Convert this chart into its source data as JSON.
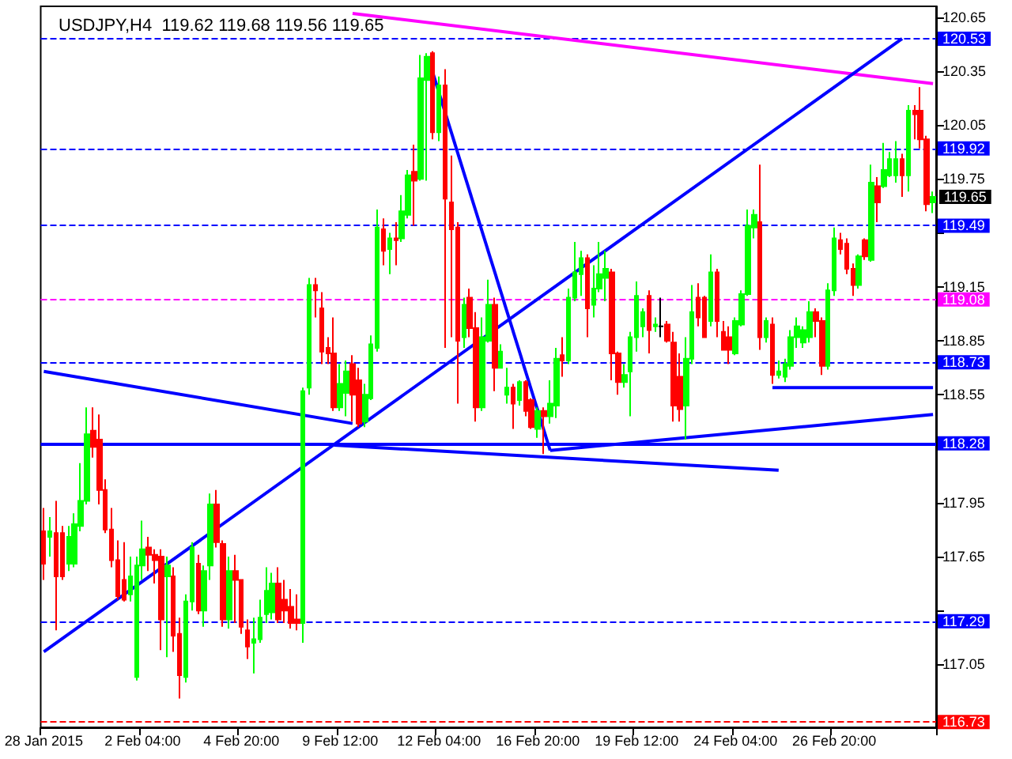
{
  "chart_data": {
    "type": "candlestick",
    "title": "USDJPY,H4  119.62 119.68 119.56 119.65",
    "categories": [
      "28 Jan 2015",
      null,
      null,
      null,
      null,
      null,
      null,
      null,
      null,
      null,
      null,
      null,
      null,
      null,
      null,
      null,
      "2 Feb 04:00",
      null,
      null,
      null,
      null,
      null,
      null,
      null,
      null,
      null,
      null,
      null,
      null,
      null,
      null,
      null,
      "4 Feb 20:00",
      null,
      null,
      null,
      null,
      null,
      null,
      null,
      null,
      null,
      null,
      null,
      null,
      null,
      null,
      null,
      "9 Feb 12:00",
      null,
      null,
      null,
      null,
      null,
      null,
      null,
      null,
      null,
      null,
      null,
      null,
      null,
      null,
      null,
      "12 Feb 04:00",
      null,
      null,
      null,
      null,
      null,
      null,
      null,
      null,
      null,
      null,
      null,
      null,
      null,
      null,
      null,
      "16 Feb 20:00",
      null,
      null,
      null,
      null,
      null,
      null,
      null,
      null,
      null,
      null,
      null,
      null,
      null,
      null,
      null,
      "19 Feb 12:00",
      null,
      null,
      null,
      null,
      null,
      null,
      null,
      null,
      null,
      null,
      null,
      null,
      null,
      null,
      null,
      "24 Feb 04:00",
      null,
      null,
      null,
      null,
      null,
      null,
      null,
      null,
      null,
      null,
      null,
      null,
      null,
      null,
      null,
      "26 Feb 20:00",
      null,
      null,
      null,
      null,
      null,
      null,
      null,
      null,
      null,
      null,
      null,
      null,
      null,
      null,
      null,
      null
    ],
    "colors": [
      "#ff0000",
      "#00ff00",
      "#ff0000",
      "#ff0000",
      "#00ff00",
      "#00ff00",
      "#00ff00",
      "#00ff00",
      "#ff0000",
      "#ff0000",
      "#ff0000",
      "#ff0000",
      "#ff0000",
      "#ff0000",
      "#00ff00",
      "#00ff00",
      "#00ff00",
      "#ff0000",
      "#ff0000",
      "#ff0000",
      "#00ff00",
      "#ff0000",
      "#ff0000",
      "#00ff00",
      "#00ff00",
      "#ff0000",
      "#00ff00",
      "#00ff00",
      "#ff0000",
      "#ff0000",
      "#00ff00",
      "#ff0000",
      "#ff0000",
      "#ff0000",
      "#00ff00",
      "#00ff00",
      "#00ff00",
      "#00ff00",
      "#ff0000",
      "#ff0000",
      "#ff0000",
      "#ff0000",
      "#00ff00",
      "#00ff00",
      "#ff0000",
      "#ff0000",
      "#ff0000",
      "#ff0000",
      "#00ff00",
      "#00ff00",
      "#ff0000",
      "#ff0000",
      "#00ff00",
      "#00ff00",
      "#00ff00",
      "#ff0000",
      "#00ff00",
      "#ff0000",
      "#00ff00",
      "#00ff00",
      "#ff0000",
      "#00ff00",
      "#00ff00",
      "#ff0000",
      "#00ff00",
      "#ff0000",
      "#ff0000",
      "#ff0000",
      "#00ff00",
      "#ff0000",
      "#ff0000",
      "#00ff00",
      "#00ff00",
      "#ff0000",
      "#00ff00",
      "#00ff00",
      "#ff0000",
      "#00ff00",
      "#ff0000",
      "#ff0000",
      "#00ff00",
      "#ff0000",
      "#00ff00",
      "#00ff00",
      "#ff0000",
      "#00ff00",
      "#00ff00",
      "#00ff00",
      "#ff0000",
      "#00ff00",
      "#00ff00",
      "#00ff00",
      "#ff0000",
      "#ff0000",
      "#00ff00",
      "#00ff00",
      "#00ff00",
      "#00ff00",
      "#ff0000",
      "#00ff00",
      "#000000",
      "#ff0000",
      "#ff0000",
      "#ff0000",
      "#00ff00",
      "#00ff00",
      "#ff0000",
      "#ff0000",
      "#00ff00",
      "#ff0000",
      "#ff0000",
      "#ff0000",
      "#00ff00",
      "#00ff00",
      "#00ff00",
      "#00ff00",
      "#ff0000",
      "#00ff00",
      "#ff0000",
      "#00ff00",
      "#00ff00",
      "#00ff00",
      "#00ff00",
      "#00ff00",
      "#00ff00",
      "#ff0000",
      "#ff0000",
      "#00ff00",
      "#00ff00",
      "#ff0000",
      "#ff0000",
      "#ff0000",
      "#00ff00",
      "#ff0000",
      "#00ff00",
      "#ff0000",
      "#00ff00",
      "#00ff00",
      "#00ff00",
      "#ff0000",
      "#00ff00",
      "#ff0000",
      "#ff0000",
      "#ff0000",
      "#00ff00"
    ],
    "ohlc": [
      [
        117.79,
        117.92,
        117.52,
        117.61
      ],
      [
        117.76,
        117.87,
        117.65,
        117.79
      ],
      [
        117.78,
        117.96,
        117.24,
        117.54
      ],
      [
        117.78,
        117.82,
        117.52,
        117.54
      ],
      [
        117.61,
        117.82,
        117.57,
        117.76
      ],
      [
        117.61,
        117.89,
        117.59,
        117.83
      ],
      [
        117.82,
        118.17,
        117.79,
        117.96
      ],
      [
        117.96,
        118.48,
        117.94,
        118.33
      ],
      [
        118.35,
        118.48,
        118.2,
        118.26
      ],
      [
        118.3,
        118.44,
        117.94,
        118.02
      ],
      [
        118.02,
        118.08,
        117.78,
        117.8
      ],
      [
        117.8,
        117.92,
        117.59,
        117.63
      ],
      [
        117.63,
        117.74,
        117.41,
        117.43
      ],
      [
        117.52,
        117.73,
        117.4,
        117.41
      ],
      [
        117.44,
        117.65,
        117.4,
        117.54
      ],
      [
        116.98,
        117.65,
        116.96,
        117.6
      ],
      [
        117.6,
        117.85,
        117.52,
        117.69
      ],
      [
        117.7,
        117.76,
        117.57,
        117.66
      ],
      [
        117.66,
        117.69,
        117.5,
        117.63
      ],
      [
        117.65,
        117.69,
        117.13,
        117.3
      ],
      [
        117.54,
        117.65,
        117.09,
        117.6
      ],
      [
        117.54,
        117.59,
        117.12,
        117.21
      ],
      [
        117.22,
        117.31,
        116.86,
        116.99
      ],
      [
        116.98,
        117.44,
        116.95,
        117.4
      ],
      [
        117.4,
        117.73,
        117.35,
        117.7
      ],
      [
        117.61,
        117.66,
        117.33,
        117.35
      ],
      [
        117.35,
        117.6,
        117.26,
        117.57
      ],
      [
        117.6,
        118.0,
        117.52,
        117.94
      ],
      [
        117.94,
        118.02,
        117.7,
        117.73
      ],
      [
        117.72,
        117.74,
        117.26,
        117.3
      ],
      [
        117.3,
        117.65,
        117.25,
        117.57
      ],
      [
        117.57,
        117.66,
        117.28,
        117.52
      ],
      [
        117.52,
        117.52,
        117.22,
        117.26
      ],
      [
        117.24,
        117.3,
        117.08,
        117.15
      ],
      [
        117.17,
        117.31,
        117.0,
        117.19
      ],
      [
        117.19,
        117.41,
        117.17,
        117.31
      ],
      [
        117.33,
        117.59,
        117.28,
        117.46
      ],
      [
        117.34,
        117.56,
        117.3,
        117.5
      ],
      [
        117.5,
        117.59,
        117.28,
        117.3
      ],
      [
        117.41,
        117.52,
        117.28,
        117.35
      ],
      [
        117.37,
        117.47,
        117.25,
        117.28
      ],
      [
        117.3,
        117.44,
        117.24,
        117.28
      ],
      [
        117.28,
        118.59,
        117.17,
        118.57
      ],
      [
        118.59,
        119.2,
        118.55,
        119.16
      ],
      [
        119.16,
        119.2,
        118.98,
        119.13
      ],
      [
        119.03,
        119.12,
        118.72,
        118.79
      ],
      [
        118.81,
        118.87,
        118.72,
        118.78
      ],
      [
        118.78,
        118.98,
        118.46,
        118.48
      ],
      [
        118.48,
        118.72,
        118.46,
        118.61
      ],
      [
        118.56,
        118.74,
        118.43,
        118.68
      ],
      [
        118.72,
        118.77,
        118.4,
        118.55
      ],
      [
        118.63,
        118.7,
        118.37,
        118.39
      ],
      [
        118.4,
        118.61,
        118.37,
        118.55
      ],
      [
        118.53,
        118.88,
        118.52,
        118.83
      ],
      [
        118.81,
        119.58,
        118.79,
        119.48
      ],
      [
        119.47,
        119.53,
        119.27,
        119.35
      ],
      [
        119.36,
        119.45,
        119.22,
        119.42
      ],
      [
        119.42,
        119.51,
        119.27,
        119.41
      ],
      [
        119.42,
        119.66,
        119.4,
        119.57
      ],
      [
        119.55,
        119.8,
        119.53,
        119.77
      ],
      [
        119.79,
        119.94,
        119.49,
        119.74
      ],
      [
        119.75,
        120.44,
        119.74,
        120.31
      ],
      [
        120.3,
        120.45,
        119.74,
        120.43
      ],
      [
        120.45,
        120.46,
        119.97,
        120.01
      ],
      [
        120.01,
        120.32,
        119.96,
        120.27
      ],
      [
        120.27,
        120.36,
        118.81,
        119.64
      ],
      [
        119.62,
        119.88,
        118.87,
        119.47
      ],
      [
        119.48,
        119.51,
        118.5,
        118.85
      ],
      [
        118.87,
        119.09,
        118.81,
        119.05
      ],
      [
        119.09,
        119.14,
        118.87,
        118.92
      ],
      [
        118.92,
        119.01,
        118.4,
        118.48
      ],
      [
        118.48,
        118.98,
        118.46,
        118.87
      ],
      [
        118.85,
        119.19,
        118.84,
        119.05
      ],
      [
        119.05,
        119.09,
        118.57,
        118.7
      ],
      [
        118.7,
        118.83,
        118.7,
        118.79
      ],
      [
        118.55,
        118.7,
        118.5,
        118.59
      ],
      [
        118.59,
        118.61,
        118.36,
        118.5
      ],
      [
        118.52,
        118.63,
        118.49,
        118.62
      ],
      [
        118.62,
        118.63,
        118.43,
        118.46
      ],
      [
        118.52,
        118.53,
        118.36,
        118.37
      ],
      [
        118.36,
        118.48,
        118.31,
        118.46
      ],
      [
        118.46,
        118.48,
        118.22,
        118.43
      ],
      [
        118.43,
        118.63,
        118.39,
        118.5
      ],
      [
        118.49,
        118.81,
        118.42,
        118.75
      ],
      [
        118.77,
        118.87,
        118.65,
        118.74
      ],
      [
        118.74,
        119.14,
        118.72,
        119.09
      ],
      [
        119.09,
        119.4,
        119.07,
        119.23
      ],
      [
        119.22,
        119.35,
        119.1,
        119.31
      ],
      [
        119.31,
        119.33,
        118.87,
        119.03
      ],
      [
        119.05,
        119.27,
        118.98,
        119.14
      ],
      [
        119.14,
        119.4,
        119.12,
        119.22
      ],
      [
        119.2,
        119.35,
        119.07,
        119.25
      ],
      [
        119.23,
        119.25,
        118.63,
        118.78
      ],
      [
        118.78,
        118.79,
        118.55,
        118.62
      ],
      [
        118.62,
        118.72,
        118.59,
        118.66
      ],
      [
        118.68,
        118.9,
        118.43,
        118.87
      ],
      [
        118.87,
        119.18,
        118.79,
        119.1
      ],
      [
        118.93,
        119.03,
        118.87,
        119.01
      ],
      [
        119.1,
        119.13,
        118.78,
        118.91
      ],
      [
        118.93,
        118.98,
        118.9,
        118.94
      ],
      [
        118.93,
        119.09,
        118.87,
        118.93
      ],
      [
        118.94,
        118.96,
        118.84,
        118.85
      ],
      [
        118.84,
        118.9,
        118.4,
        118.49
      ],
      [
        118.65,
        118.78,
        118.4,
        118.47
      ],
      [
        118.49,
        118.87,
        118.3,
        118.75
      ],
      [
        118.75,
        119.16,
        118.72,
        119.01
      ],
      [
        119.09,
        119.17,
        118.93,
        118.98
      ],
      [
        119.09,
        119.1,
        118.87,
        118.87
      ],
      [
        118.96,
        119.33,
        118.93,
        119.23
      ],
      [
        119.23,
        119.25,
        118.87,
        118.96
      ],
      [
        118.9,
        118.96,
        118.8,
        118.8
      ],
      [
        118.87,
        118.93,
        118.72,
        118.8
      ],
      [
        118.78,
        118.98,
        118.77,
        118.96
      ],
      [
        118.94,
        119.13,
        118.93,
        119.11
      ],
      [
        119.11,
        119.58,
        119.1,
        119.49
      ],
      [
        119.48,
        119.58,
        119.42,
        119.55
      ],
      [
        119.51,
        119.83,
        118.8,
        118.87
      ],
      [
        118.87,
        118.98,
        118.84,
        118.96
      ],
      [
        118.94,
        118.98,
        118.61,
        118.66
      ],
      [
        118.66,
        118.74,
        118.64,
        118.68
      ],
      [
        118.65,
        118.75,
        118.62,
        118.72
      ],
      [
        118.71,
        118.91,
        118.69,
        118.87
      ],
      [
        118.87,
        118.98,
        118.81,
        118.93
      ],
      [
        118.84,
        118.93,
        118.81,
        118.91
      ],
      [
        118.87,
        119.07,
        118.84,
        119.01
      ],
      [
        119.01,
        119.03,
        118.87,
        118.96
      ],
      [
        118.96,
        118.98,
        118.66,
        118.71
      ],
      [
        118.71,
        119.17,
        118.69,
        119.13
      ],
      [
        119.13,
        119.48,
        119.1,
        119.42
      ],
      [
        119.41,
        119.45,
        119.33,
        119.36
      ],
      [
        119.39,
        119.42,
        119.22,
        119.25
      ],
      [
        119.25,
        119.28,
        119.1,
        119.16
      ],
      [
        119.16,
        119.33,
        119.14,
        119.32
      ],
      [
        119.41,
        119.42,
        119.3,
        119.32
      ],
      [
        119.3,
        119.83,
        119.29,
        119.73
      ],
      [
        119.71,
        119.76,
        119.51,
        119.62
      ],
      [
        119.71,
        119.95,
        119.7,
        119.8
      ],
      [
        119.77,
        119.9,
        119.76,
        119.86
      ],
      [
        119.77,
        119.96,
        119.73,
        119.86
      ],
      [
        119.86,
        119.89,
        119.65,
        119.77
      ],
      [
        119.77,
        120.16,
        119.68,
        120.13
      ],
      [
        120.13,
        120.16,
        119.97,
        120.11
      ],
      [
        120.13,
        120.26,
        119.92,
        119.97
      ],
      [
        119.97,
        119.99,
        119.57,
        119.61
      ],
      [
        119.62,
        119.68,
        119.56,
        119.65
      ]
    ],
    "series": [
      {
        "type": "line",
        "color": "#ff00ff",
        "line_style": "solid",
        "values": [
          null,
          null,
          null,
          null,
          null,
          null,
          null,
          null,
          null,
          null,
          null,
          null,
          null,
          null,
          null,
          null,
          null,
          null,
          null,
          null,
          null,
          null,
          null,
          null,
          null,
          null,
          null,
          null,
          null,
          null,
          null,
          null,
          null,
          null,
          null,
          null,
          null,
          null,
          null,
          null,
          null,
          null,
          null,
          null,
          null,
          null,
          null,
          null,
          null,
          null,
          120.67,
          null,
          null,
          null,
          null,
          null,
          null,
          null,
          null,
          null,
          null,
          null,
          null,
          null,
          null,
          null,
          null,
          null,
          null,
          null,
          null,
          null,
          null,
          null,
          null,
          null,
          null,
          null,
          null,
          null,
          null,
          null,
          null,
          null,
          null,
          null,
          null,
          null,
          null,
          null,
          null,
          null,
          null,
          null,
          null,
          null,
          null,
          null,
          null,
          null,
          null,
          null,
          null,
          null,
          null,
          null,
          null,
          null,
          null,
          null,
          null,
          null,
          null,
          null,
          null,
          null,
          null,
          null,
          null,
          null,
          null,
          null,
          null,
          null,
          null,
          null,
          null,
          null,
          null,
          null,
          null,
          null,
          null,
          null,
          null,
          null,
          null,
          null,
          null,
          null,
          null,
          null,
          null,
          null,
          120.28
        ]
      },
      {
        "type": "line",
        "color": "#0000ff",
        "line_style": "solid",
        "values": [
          117.12,
          null,
          null,
          null,
          null,
          null,
          null,
          null,
          null,
          null,
          null,
          null,
          null,
          null,
          null,
          null,
          null,
          null,
          null,
          null,
          null,
          null,
          null,
          null,
          null,
          null,
          null,
          null,
          null,
          null,
          null,
          null,
          null,
          null,
          null,
          null,
          null,
          null,
          null,
          null,
          null,
          null,
          null,
          null,
          null,
          null,
          null,
          null,
          null,
          null,
          null,
          null,
          null,
          null,
          null,
          null,
          null,
          null,
          null,
          null,
          null,
          null,
          null,
          null,
          null,
          null,
          null,
          null,
          null,
          null,
          null,
          null,
          null,
          null,
          null,
          null,
          null,
          null,
          null,
          null,
          null,
          null,
          null,
          null,
          null,
          null,
          null,
          null,
          null,
          null,
          null,
          null,
          null,
          null,
          null,
          null,
          null,
          null,
          null,
          null,
          null,
          null,
          null,
          null,
          null,
          null,
          null,
          null,
          null,
          null,
          null,
          null,
          null,
          null,
          null,
          null,
          null,
          null,
          null,
          null,
          null,
          null,
          null,
          null,
          null,
          null,
          null,
          null,
          null,
          null,
          null,
          null,
          null,
          null,
          null,
          null,
          null,
          null,
          null,
          120.53,
          null,
          null,
          null,
          null,
          null
        ]
      },
      {
        "type": "line",
        "color": "#0000ff",
        "line_style": "solid",
        "values": [
          null,
          null,
          null,
          null,
          null,
          null,
          null,
          null,
          null,
          null,
          null,
          null,
          null,
          null,
          null,
          null,
          null,
          null,
          null,
          null,
          null,
          null,
          null,
          null,
          null,
          null,
          null,
          null,
          null,
          null,
          null,
          null,
          null,
          null,
          null,
          null,
          null,
          null,
          null,
          null,
          null,
          null,
          null,
          null,
          null,
          null,
          null,
          118.27,
          null,
          null,
          null,
          null,
          null,
          null,
          null,
          null,
          null,
          null,
          null,
          null,
          null,
          null,
          null,
          null,
          null,
          null,
          null,
          null,
          null,
          null,
          null,
          null,
          null,
          null,
          null,
          null,
          null,
          null,
          null,
          null,
          null,
          null,
          null,
          null,
          null,
          null,
          null,
          null,
          null,
          null,
          null,
          null,
          null,
          null,
          null,
          null,
          null,
          null,
          null,
          null,
          null,
          null,
          null,
          null,
          null,
          null,
          null,
          null,
          null,
          null,
          null,
          null,
          null,
          null,
          null,
          null,
          null,
          null,
          null,
          118.13,
          null,
          null,
          null,
          null,
          null,
          null,
          null,
          null,
          null,
          null,
          null,
          null,
          null,
          null,
          null,
          null,
          null,
          null,
          null,
          null,
          null,
          null,
          null,
          null,
          null
        ]
      },
      {
        "type": "line",
        "color": "#0000ff",
        "line_style": "solid",
        "values": [
          null,
          null,
          null,
          null,
          null,
          null,
          null,
          null,
          null,
          null,
          null,
          null,
          null,
          null,
          null,
          null,
          null,
          null,
          null,
          null,
          null,
          null,
          null,
          null,
          null,
          null,
          null,
          null,
          null,
          null,
          null,
          null,
          null,
          null,
          null,
          null,
          null,
          null,
          null,
          null,
          null,
          null,
          null,
          null,
          null,
          null,
          null,
          null,
          null,
          null,
          null,
          null,
          null,
          null,
          null,
          null,
          null,
          null,
          null,
          null,
          null,
          null,
          null,
          120.34,
          null,
          null,
          null,
          null,
          null,
          null,
          null,
          null,
          null,
          null,
          null,
          null,
          null,
          null,
          null,
          null,
          null,
          null,
          118.24,
          null,
          null,
          null,
          null,
          null,
          null,
          null,
          null,
          null,
          null,
          null,
          null,
          null,
          null,
          null,
          null,
          null,
          null,
          null,
          null,
          null,
          null,
          null,
          null,
          null,
          null,
          null,
          null,
          null,
          null,
          null,
          null,
          null,
          null,
          null,
          null,
          null,
          null,
          null,
          null,
          null,
          null,
          null,
          null,
          null,
          null,
          null,
          null,
          null,
          null,
          null,
          null,
          null,
          null,
          null,
          null,
          null,
          null,
          null,
          null,
          null,
          null
        ]
      },
      {
        "type": "line",
        "color": "#0000ff",
        "line_style": "solid",
        "values": [
          null,
          null,
          null,
          null,
          null,
          null,
          null,
          null,
          null,
          null,
          null,
          null,
          null,
          null,
          null,
          null,
          null,
          null,
          null,
          null,
          null,
          null,
          null,
          null,
          null,
          null,
          null,
          null,
          null,
          null,
          null,
          null,
          null,
          null,
          null,
          null,
          null,
          null,
          null,
          null,
          null,
          null,
          null,
          null,
          null,
          null,
          null,
          null,
          null,
          null,
          null,
          null,
          null,
          null,
          null,
          null,
          null,
          null,
          null,
          null,
          null,
          null,
          null,
          null,
          null,
          null,
          null,
          null,
          null,
          null,
          null,
          null,
          null,
          null,
          null,
          null,
          null,
          null,
          null,
          null,
          null,
          null,
          null,
          null,
          null,
          null,
          null,
          null,
          null,
          null,
          null,
          null,
          null,
          null,
          null,
          null,
          null,
          null,
          null,
          null,
          null,
          null,
          null,
          null,
          null,
          null,
          null,
          null,
          null,
          null,
          null,
          null,
          null,
          null,
          null,
          null,
          null,
          null,
          118.59,
          null,
          null,
          null,
          null,
          null,
          null,
          null,
          null,
          null,
          null,
          null,
          null,
          null,
          null,
          null,
          null,
          null,
          null,
          null,
          null,
          null,
          null,
          null,
          null,
          null,
          118.59
        ]
      },
      {
        "type": "line",
        "color": "#0000ff",
        "line_style": "solid",
        "values": [
          118.68,
          null,
          null,
          null,
          null,
          null,
          null,
          null,
          null,
          null,
          null,
          null,
          null,
          null,
          null,
          null,
          null,
          null,
          null,
          null,
          null,
          null,
          null,
          null,
          null,
          null,
          null,
          null,
          null,
          null,
          null,
          null,
          null,
          null,
          null,
          null,
          null,
          null,
          null,
          null,
          null,
          null,
          null,
          null,
          null,
          null,
          null,
          null,
          null,
          null,
          118.39,
          null,
          null,
          null,
          null,
          null,
          null,
          null,
          null,
          null,
          null,
          null,
          null,
          null,
          null,
          null,
          null,
          null,
          null,
          null,
          null,
          null,
          null,
          null,
          null,
          null,
          null,
          null,
          null,
          null,
          null,
          null,
          null,
          null,
          null,
          null,
          null,
          null,
          null,
          null,
          null,
          null,
          null,
          null,
          null,
          null,
          null,
          null,
          null,
          null,
          null,
          null,
          null,
          null,
          null,
          null,
          null,
          null,
          null,
          null,
          null,
          null,
          null,
          null,
          null,
          null,
          null,
          null,
          null,
          null,
          null,
          null,
          null,
          null,
          null,
          null,
          null,
          null,
          null,
          null,
          null,
          null,
          null,
          null,
          null,
          null,
          null,
          null,
          null,
          null,
          null,
          null,
          null,
          null,
          null
        ]
      },
      {
        "type": "line",
        "color": "#0000ff",
        "line_style": "solid",
        "values": [
          null,
          null,
          null,
          null,
          null,
          null,
          null,
          null,
          null,
          null,
          null,
          null,
          null,
          null,
          null,
          null,
          null,
          null,
          null,
          null,
          null,
          null,
          null,
          null,
          null,
          null,
          null,
          null,
          null,
          null,
          null,
          null,
          null,
          null,
          null,
          null,
          null,
          null,
          null,
          null,
          null,
          null,
          null,
          null,
          null,
          null,
          null,
          null,
          null,
          null,
          null,
          null,
          null,
          null,
          null,
          null,
          null,
          null,
          null,
          null,
          null,
          null,
          null,
          null,
          null,
          null,
          null,
          null,
          null,
          null,
          null,
          null,
          null,
          null,
          null,
          null,
          null,
          null,
          null,
          null,
          null,
          null,
          118.24,
          null,
          null,
          null,
          null,
          null,
          null,
          null,
          null,
          null,
          null,
          null,
          null,
          null,
          null,
          null,
          null,
          null,
          null,
          null,
          null,
          null,
          null,
          null,
          null,
          null,
          null,
          null,
          null,
          null,
          null,
          null,
          null,
          null,
          null,
          null,
          null,
          null,
          null,
          null,
          null,
          null,
          null,
          null,
          null,
          null,
          null,
          null,
          null,
          null,
          null,
          null,
          null,
          null,
          null,
          null,
          null,
          null,
          null,
          null,
          null,
          null,
          118.44
        ]
      }
    ],
    "ylim": [
      116.7,
      120.71
    ],
    "yticks": [
      117.05,
      {
        "value": 117.35,
        "label": null
      },
      117.65,
      117.95,
      {
        "value": 118.25,
        "label": null
      },
      118.55,
      118.85,
      119.15,
      {
        "value": 119.45,
        "label": null
      },
      119.75,
      120.05,
      120.35,
      120.65
    ],
    "annotations": [
      "119.65"
    ],
    "ref_lines": [
      {
        "axis": "y",
        "value": 120.53,
        "label": "120.53",
        "color": "#0000ff",
        "line_style": "dashed"
      },
      {
        "axis": "y",
        "value": 119.92,
        "label": "119.92",
        "color": "#0000ff",
        "line_style": "dashed"
      },
      {
        "axis": "y",
        "value": 119.49,
        "label": "119.49",
        "color": "#0000ff",
        "line_style": "dashed"
      },
      {
        "axis": "y",
        "value": 119.08,
        "label": "119.08",
        "color": "#ff00ff",
        "line_style": "dashed"
      },
      {
        "axis": "y",
        "value": 118.73,
        "label": "118.73",
        "color": "#0000ff",
        "line_style": "dashed"
      },
      {
        "axis": "y",
        "value": 118.28,
        "label": "118.28",
        "color": "#0000ff",
        "line_style": "solid"
      },
      {
        "axis": "y",
        "value": 117.29,
        "label": "117.29",
        "color": "#0000ff",
        "line_style": "dashed"
      },
      {
        "axis": "y",
        "value": 116.73,
        "label": "116.73",
        "color": "#ff0000",
        "line_style": "dashed"
      }
    ]
  }
}
